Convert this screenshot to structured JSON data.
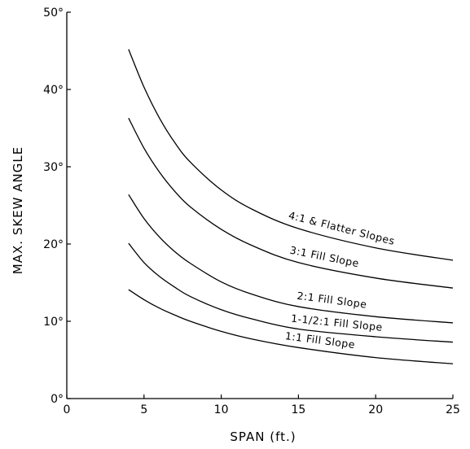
{
  "chart_data": {
    "type": "line",
    "title": "",
    "xlabel": "SPAN  (ft.)",
    "ylabel": "MAX.  SKEW  ANGLE",
    "xlim": [
      0,
      25
    ],
    "ylim": [
      0,
      50
    ],
    "x_ticks": [
      0,
      5,
      10,
      15,
      20,
      25
    ],
    "y_ticks": [
      0,
      10,
      20,
      30,
      40,
      50
    ],
    "y_tick_labels": [
      "0°",
      "10°",
      "20°",
      "30°",
      "40°",
      "50°"
    ],
    "grid": false,
    "x": [
      4,
      5,
      6,
      7,
      8,
      10,
      12,
      15,
      20,
      25
    ],
    "series": [
      {
        "name": "4:1  &  Flatter  Slopes",
        "values": [
          45.2,
          40.3,
          36.3,
          33.1,
          30.6,
          27.0,
          24.5,
          22.0,
          19.5,
          17.9
        ]
      },
      {
        "name": "3:1  Fill  Slope",
        "values": [
          36.3,
          32.4,
          29.3,
          26.8,
          24.8,
          21.9,
          19.8,
          17.6,
          15.6,
          14.3
        ]
      },
      {
        "name": "2:1  Fill  Slope",
        "values": [
          26.4,
          23.3,
          20.9,
          19.0,
          17.5,
          15.1,
          13.5,
          11.9,
          10.6,
          9.8
        ]
      },
      {
        "name": "1-1/2:1  Fill  Slope",
        "values": [
          20.1,
          17.6,
          15.8,
          14.4,
          13.2,
          11.5,
          10.3,
          9.0,
          8.0,
          7.3
        ]
      },
      {
        "name": "1:1  Fill  Slope",
        "values": [
          14.1,
          12.8,
          11.7,
          10.8,
          10.0,
          8.7,
          7.7,
          6.6,
          5.3,
          4.5
        ]
      }
    ]
  }
}
